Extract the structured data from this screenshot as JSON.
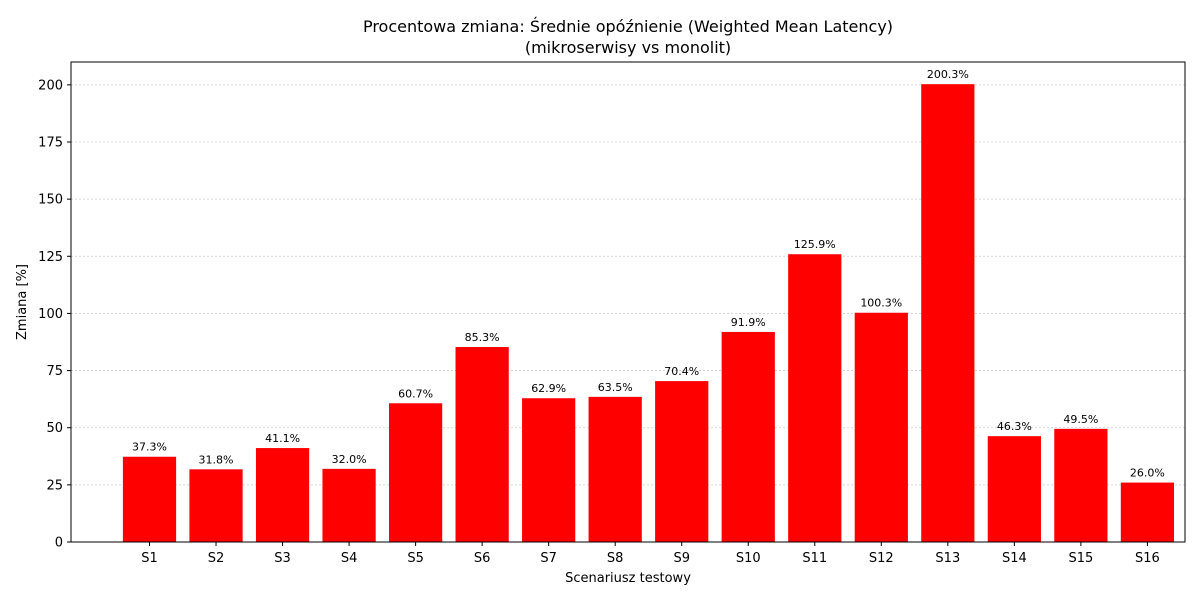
{
  "chart_data": {
    "type": "bar",
    "title_line1": "Procentowa zmiana: Średnie opóźnienie (Weighted Mean Latency)",
    "title_line2": "(mikroserwisy vs monolit)",
    "xlabel": "Scenariusz testowy",
    "ylabel": "Zmiana [%]",
    "categories": [
      "S1",
      "S2",
      "S3",
      "S4",
      "S5",
      "S6",
      "S7",
      "S8",
      "S9",
      "S10",
      "S11",
      "S12",
      "S13",
      "S14",
      "S15",
      "S16"
    ],
    "values": [
      37.3,
      31.8,
      41.1,
      32.0,
      60.7,
      85.3,
      62.9,
      63.5,
      70.4,
      91.9,
      125.9,
      100.3,
      200.3,
      46.3,
      49.5,
      26.0
    ],
    "value_labels": [
      "37.3%",
      "31.8%",
      "41.1%",
      "32.0%",
      "60.7%",
      "85.3%",
      "62.9%",
      "63.5%",
      "70.4%",
      "91.9%",
      "125.9%",
      "100.3%",
      "200.3%",
      "46.3%",
      "49.5%",
      "26.0%"
    ],
    "ylim": [
      0,
      210
    ],
    "yticks": [
      0,
      25,
      50,
      75,
      100,
      125,
      150,
      175,
      200
    ],
    "ytick_labels": [
      "0",
      "25",
      "50",
      "75",
      "100",
      "125",
      "150",
      "175",
      "200"
    ],
    "grid": true,
    "bar_color": "#ff0000"
  }
}
